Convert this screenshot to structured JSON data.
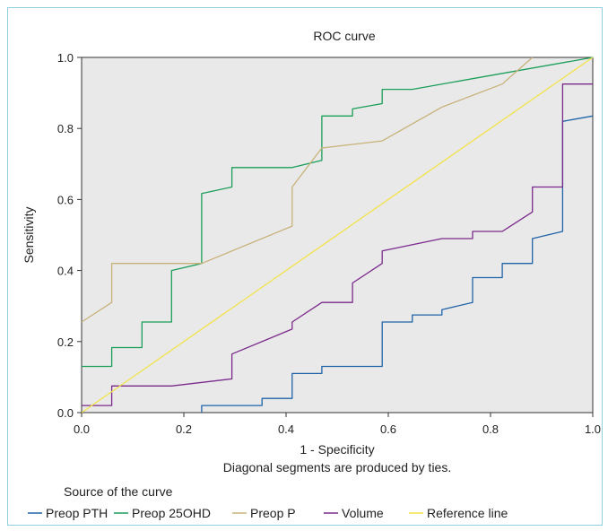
{
  "chart_data": {
    "type": "line",
    "title": "ROC curve",
    "xlabel": "1 - Specificity",
    "ylabel": "Sensitivity",
    "xlim": [
      0,
      1
    ],
    "ylim": [
      0,
      1
    ],
    "x_ticks": [
      "0.0",
      "0.2",
      "0.4",
      "0.6",
      "0.8",
      "1.0"
    ],
    "y_ticks": [
      "0.0",
      "0.2",
      "0.4",
      "0.6",
      "0.8",
      "1.0"
    ],
    "grid": false,
    "plot_background": "#e9e9e9",
    "footnote": "Diagonal segments are produced by ties.",
    "legend": {
      "title": "Source of the curve",
      "placement": "bottom",
      "entries": [
        "Preop PTH",
        "Preop 25OHD",
        "Preop P",
        "Volume",
        "Reference line"
      ]
    },
    "series": [
      {
        "name": "Preop PTH",
        "color": "#1f63a8",
        "points": [
          [
            0.235,
            0
          ],
          [
            0.235,
            0.02
          ],
          [
            0.353,
            0.02
          ],
          [
            0.353,
            0.04
          ],
          [
            0.412,
            0.04
          ],
          [
            0.412,
            0.11
          ],
          [
            0.47,
            0.11
          ],
          [
            0.47,
            0.13
          ],
          [
            0.588,
            0.13
          ],
          [
            0.588,
            0.255
          ],
          [
            0.647,
            0.255
          ],
          [
            0.647,
            0.275
          ],
          [
            0.705,
            0.275
          ],
          [
            0.705,
            0.29
          ],
          [
            0.765,
            0.31
          ],
          [
            0.765,
            0.38
          ],
          [
            0.823,
            0.38
          ],
          [
            0.823,
            0.42
          ],
          [
            0.882,
            0.42
          ],
          [
            0.882,
            0.49
          ],
          [
            0.941,
            0.51
          ],
          [
            0.941,
            0.82
          ],
          [
            1.0,
            0.835
          ]
        ]
      },
      {
        "name": "Preop 25OHD",
        "color": "#1a9e58",
        "points": [
          [
            0,
            0.13
          ],
          [
            0.059,
            0.13
          ],
          [
            0.059,
            0.183
          ],
          [
            0.118,
            0.183
          ],
          [
            0.118,
            0.255
          ],
          [
            0.176,
            0.255
          ],
          [
            0.176,
            0.4
          ],
          [
            0.235,
            0.42
          ],
          [
            0.235,
            0.617
          ],
          [
            0.294,
            0.635
          ],
          [
            0.294,
            0.69
          ],
          [
            0.412,
            0.69
          ],
          [
            0.47,
            0.71
          ],
          [
            0.47,
            0.835
          ],
          [
            0.53,
            0.835
          ],
          [
            0.53,
            0.855
          ],
          [
            0.588,
            0.87
          ],
          [
            0.588,
            0.91
          ],
          [
            0.647,
            0.91
          ],
          [
            1.0,
            1.0
          ]
        ]
      },
      {
        "name": "Preop P",
        "color": "#c8b27a",
        "points": [
          [
            0,
            0.255
          ],
          [
            0.059,
            0.31
          ],
          [
            0.059,
            0.42
          ],
          [
            0.235,
            0.42
          ],
          [
            0.412,
            0.525
          ],
          [
            0.412,
            0.635
          ],
          [
            0.47,
            0.745
          ],
          [
            0.588,
            0.765
          ],
          [
            0.705,
            0.86
          ],
          [
            0.823,
            0.925
          ],
          [
            0.882,
            1.0
          ]
        ]
      },
      {
        "name": "Volume",
        "color": "#7b2a8c",
        "points": [
          [
            0,
            0.02
          ],
          [
            0.059,
            0.02
          ],
          [
            0.059,
            0.075
          ],
          [
            0.176,
            0.075
          ],
          [
            0.294,
            0.095
          ],
          [
            0.294,
            0.165
          ],
          [
            0.412,
            0.235
          ],
          [
            0.412,
            0.255
          ],
          [
            0.47,
            0.31
          ],
          [
            0.53,
            0.31
          ],
          [
            0.53,
            0.365
          ],
          [
            0.588,
            0.42
          ],
          [
            0.588,
            0.455
          ],
          [
            0.705,
            0.49
          ],
          [
            0.765,
            0.49
          ],
          [
            0.765,
            0.51
          ],
          [
            0.823,
            0.51
          ],
          [
            0.882,
            0.565
          ],
          [
            0.882,
            0.635
          ],
          [
            0.941,
            0.635
          ],
          [
            0.941,
            0.925
          ],
          [
            1.0,
            0.925
          ]
        ]
      },
      {
        "name": "Reference line",
        "color": "#f2e34a",
        "points": [
          [
            0,
            0
          ],
          [
            1,
            1
          ]
        ]
      }
    ]
  }
}
